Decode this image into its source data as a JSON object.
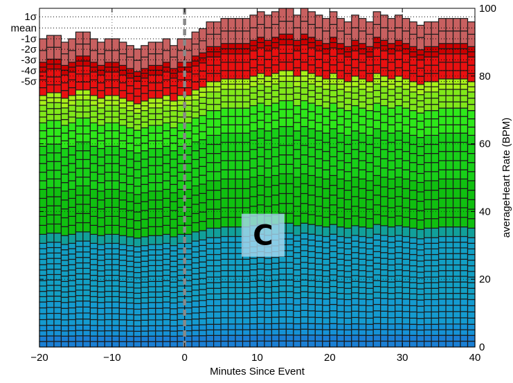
{
  "chart_data": {
    "type": "bar",
    "xlabel": "Minutes Since Event",
    "ylabel": "averageHeart Rate (BPM)",
    "xlim": [
      -20,
      40
    ],
    "ylim": [
      0,
      100
    ],
    "xticks": [
      "−20",
      "−10",
      "0",
      "10",
      "20",
      "30",
      "40"
    ],
    "xtick_values": [
      -20,
      -10,
      0,
      10,
      20,
      30,
      40
    ],
    "yticks": [
      "0",
      "20",
      "40",
      "60",
      "80",
      "100"
    ],
    "ytick_values": [
      0,
      20,
      40,
      60,
      80,
      100
    ],
    "y_axis_side": "right",
    "event_marker_x": 0,
    "panel_label": "C",
    "sigma_labels": [
      "1σ",
      "mean",
      "-1σ",
      "-2σ",
      "-3σ",
      "-4σ",
      "-5σ"
    ],
    "sigma_line_values": [
      97.5,
      94.2,
      91.0,
      87.9,
      84.8,
      81.6,
      78.4
    ],
    "bin_width_minutes": 1,
    "x": [
      -20,
      -19,
      -18,
      -17,
      -16,
      -15,
      -14,
      -13,
      -12,
      -11,
      -10,
      -9,
      -8,
      -7,
      -6,
      -5,
      -4,
      -3,
      -2,
      -1,
      0,
      1,
      2,
      3,
      4,
      5,
      6,
      7,
      8,
      9,
      10,
      11,
      12,
      13,
      14,
      15,
      16,
      17,
      18,
      19,
      20,
      21,
      22,
      23,
      24,
      25,
      26,
      27,
      28,
      29,
      30,
      31,
      32,
      33,
      34,
      35,
      36,
      37,
      38,
      39
    ],
    "totals": [
      91,
      92,
      92,
      90,
      91,
      93,
      93,
      91,
      90,
      91,
      91,
      90,
      89,
      88,
      89,
      90,
      90,
      91,
      89,
      91,
      91,
      93,
      94,
      96,
      96,
      97,
      97,
      97,
      97,
      98,
      99,
      98,
      99,
      100,
      100,
      98,
      100,
      99,
      98,
      97,
      99,
      97,
      96,
      98,
      97,
      96,
      99,
      98,
      97,
      98,
      97,
      96,
      95,
      96,
      96,
      97,
      97,
      97,
      97,
      96
    ],
    "band_colors": [
      "#1a7fd4",
      "#1592d6",
      "#149bd0",
      "#129fc4",
      "#11a09a",
      "#10c010",
      "#18d018",
      "#2ee81a",
      "#80e81a",
      "#a8f01a",
      "#e81010",
      "#cc0000",
      "#c86060"
    ],
    "band_fractions": [
      0.028,
      0.027,
      0.06,
      0.15,
      0.023,
      0.115,
      0.11,
      0.06,
      0.045,
      0.025,
      0.06,
      0.025,
      0.06
    ],
    "n_cells": [
      2,
      2,
      4,
      11,
      1,
      5,
      5,
      3,
      3,
      2,
      3,
      2,
      2
    ]
  }
}
